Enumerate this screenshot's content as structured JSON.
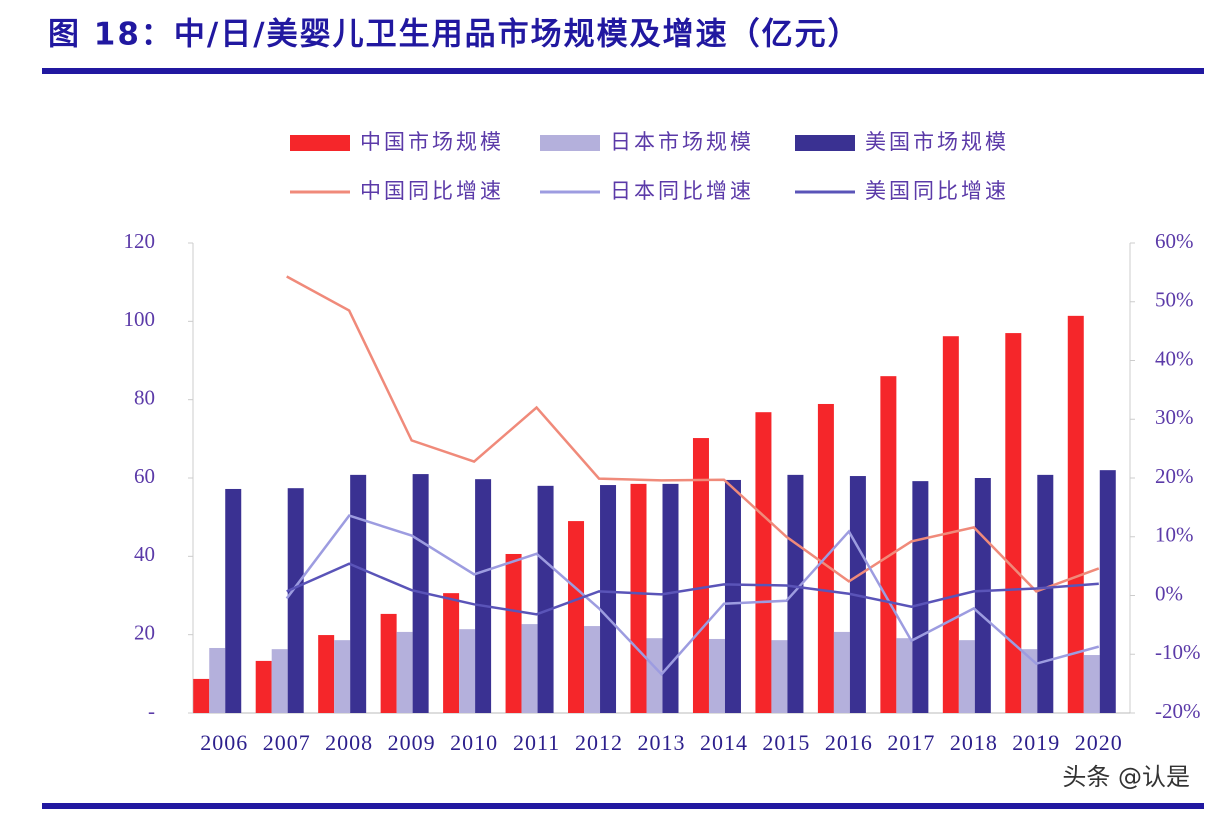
{
  "chart_data": {
    "type": "bar",
    "title": "图 18：中/日/美婴儿卫生用品市场规模及增速（亿元）",
    "watermark": "头条 @认是",
    "categories": [
      "2006",
      "2007",
      "2008",
      "2009",
      "2010",
      "2011",
      "2012",
      "2013",
      "2014",
      "2015",
      "2016",
      "2017",
      "2018",
      "2019",
      "2020"
    ],
    "series": [
      {
        "name": "中国市场规模",
        "type": "bar",
        "color": "#f5262a",
        "values": [
          8.7,
          13.3,
          19.9,
          25.3,
          30.6,
          40.6,
          49,
          58.5,
          70.2,
          76.8,
          78.9,
          86,
          96.2,
          97,
          101.4
        ]
      },
      {
        "name": "日本市场规模",
        "type": "bar",
        "color": "#b4b0dc",
        "values": [
          16.6,
          16.3,
          18.6,
          20.7,
          21.4,
          22.7,
          22.2,
          19.1,
          18.9,
          18.6,
          20.7,
          19.1,
          18.6,
          16.3,
          14.8
        ]
      },
      {
        "name": "美国市场规模",
        "type": "bar",
        "color": "#3a3192",
        "values": [
          57.2,
          57.4,
          60.8,
          61,
          59.7,
          58,
          58.2,
          58.5,
          59.5,
          60.8,
          60.5,
          59.2,
          60,
          60.8,
          62
        ]
      },
      {
        "name": "中国同比增速",
        "type": "line",
        "axis": "y2",
        "color": "#f08a7a",
        "values": [
          null,
          54.3,
          48.5,
          26.4,
          22.8,
          32,
          19.9,
          19.6,
          19.7,
          10,
          2.4,
          9.2,
          11.6,
          0.7,
          4.6
        ]
      },
      {
        "name": "日本同比增速",
        "type": "line",
        "axis": "y2",
        "color": "#9d9ce0",
        "values": [
          null,
          -0.5,
          13.6,
          10.2,
          3.6,
          7.1,
          -2.2,
          -13.4,
          -1.4,
          -0.9,
          10.9,
          -7.7,
          -2.2,
          -11.6,
          -8.7
        ]
      },
      {
        "name": "美国同比增速",
        "type": "line",
        "axis": "y2",
        "color": "#5a54b8",
        "values": [
          null,
          0.7,
          5.4,
          0.9,
          -1.5,
          -3.2,
          0.7,
          0.2,
          1.9,
          1.7,
          0.3,
          -1.9,
          0.7,
          1.2,
          2
        ]
      }
    ],
    "ylim": [
      0,
      120
    ],
    "yticks": [
      {
        "value": 0,
        "label": "-"
      },
      20,
      40,
      60,
      80,
      100,
      120
    ],
    "y2lim": [
      -20,
      60
    ],
    "y2ticks": [
      {
        "value": -20,
        "label": "-20%"
      },
      {
        "value": -10,
        "label": "-10%"
      },
      {
        "value": 0,
        "label": "0%"
      },
      {
        "value": 10,
        "label": "10%"
      },
      {
        "value": 20,
        "label": "20%"
      },
      {
        "value": 30,
        "label": "30%"
      },
      {
        "value": 40,
        "label": "40%"
      },
      {
        "value": 50,
        "label": "50%"
      },
      {
        "value": 60,
        "label": "60%"
      }
    ]
  }
}
